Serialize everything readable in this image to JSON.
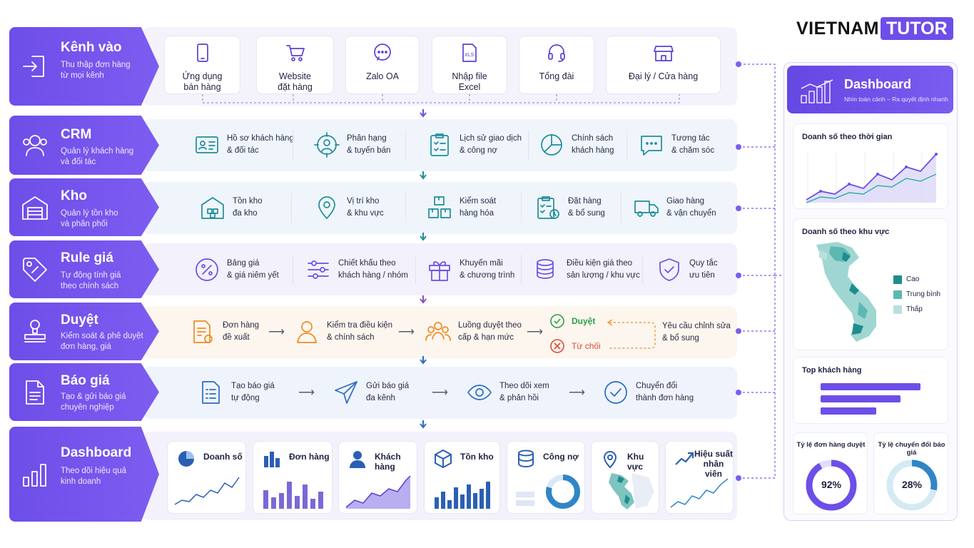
{
  "brand": {
    "word1": "VIETNAM",
    "word2": "TUTOR"
  },
  "stages": [
    {
      "title": "Kênh vào",
      "subtitle": "Thu thập đơn hàng\ntừ mọi kênh"
    },
    {
      "title": "CRM",
      "subtitle": "Quản lý khách hàng\nvà đối tác"
    },
    {
      "title": "Kho",
      "subtitle": "Quản lý tồn kho\nvà phân phối"
    },
    {
      "title": "Rule giá",
      "subtitle": "Tự động tính giá\ntheo chính sách"
    },
    {
      "title": "Duyệt",
      "subtitle": "Kiểm soát & phê duyệt\nđơn hàng, giá"
    },
    {
      "title": "Báo giá",
      "subtitle": "Tạo & gửi báo giá\nchuyên nghiệp"
    },
    {
      "title": "Dashboard",
      "subtitle": "Theo dõi hiệu quả\nkinh doanh"
    }
  ],
  "channels": [
    "Ứng dụng\nbán hàng",
    "Website\nđặt hàng",
    "Zalo OA",
    "Nhập file\nExcel",
    "Tổng đài",
    "Đại lý / Cửa hàng"
  ],
  "channel_xls": "XLS",
  "crm": [
    "Hồ sơ khách hàng\n& đối tác",
    "Phân hạng\n& tuyến bán",
    "Lịch sử giao dịch\n& công nợ",
    "Chính sách\nkhách hàng",
    "Tương tác\n& chăm sóc"
  ],
  "kho": [
    "Tồn kho\nđa kho",
    "Vị trí kho\n& khu vực",
    "Kiểm soát\nhàng hóa",
    "Đặt hàng\n& bổ sung",
    "Giao hàng\n& vận chuyển"
  ],
  "rule": [
    "Bảng giá\n& giá niêm yết",
    "Chiết khấu theo\nkhách hàng / nhóm",
    "Khuyến mãi\n& chương trình",
    "Điều kiện giá theo\nsản lượng / khu vực",
    "Quy tắc\nưu tiên"
  ],
  "duyet": {
    "steps": [
      "Đơn hàng\nđề xuất",
      "Kiểm tra điều kiện\n& chính sách",
      "Luồng duyệt theo\ncấp & hạn mức"
    ],
    "approve": "Duyệt",
    "reject": "Từ chối",
    "revise": "Yêu cầu chỉnh sửa\n& bổ sung"
  },
  "baogia": [
    "Tạo báo giá\ntự động",
    "Gửi báo giá\nđa kênh",
    "Theo dõi xem\n& phản hồi",
    "Chuyển đổi\nthành đơn hàng"
  ],
  "cards": [
    "Doanh số",
    "Đơn hàng",
    "Khách hàng",
    "Tồn kho",
    "Công nợ",
    "Khu vực",
    "Hiệu suất\nnhân viên"
  ],
  "dashboard": {
    "title": "Dashboard",
    "subtitle": "Nhìn toàn cảnh – Ra quyết định nhanh",
    "sales_time": "Doanh số theo thời gian",
    "sales_region": "Doanh số theo khu vực",
    "legend": [
      "Cao",
      "Trung bình",
      "Thấp"
    ],
    "legend_colors": [
      "#1e8d8d",
      "#5cb8b3",
      "#b9e0de"
    ],
    "top_customers": "Top khách hàng",
    "top_values": [
      1.0,
      0.8,
      0.55
    ],
    "kpi1": {
      "label": "Tỷ lệ đơn hàng duyệt",
      "value": "92%",
      "fraction": 0.92
    },
    "kpi2": {
      "label": "Tỷ lệ chuyển đổi báo giá",
      "value": "28%",
      "fraction": 0.28
    }
  },
  "colors": {
    "purple": "#6d4ee8",
    "teal": "#1e8d9a",
    "blue": "#2a6cc4",
    "orange": "#f08a24"
  }
}
